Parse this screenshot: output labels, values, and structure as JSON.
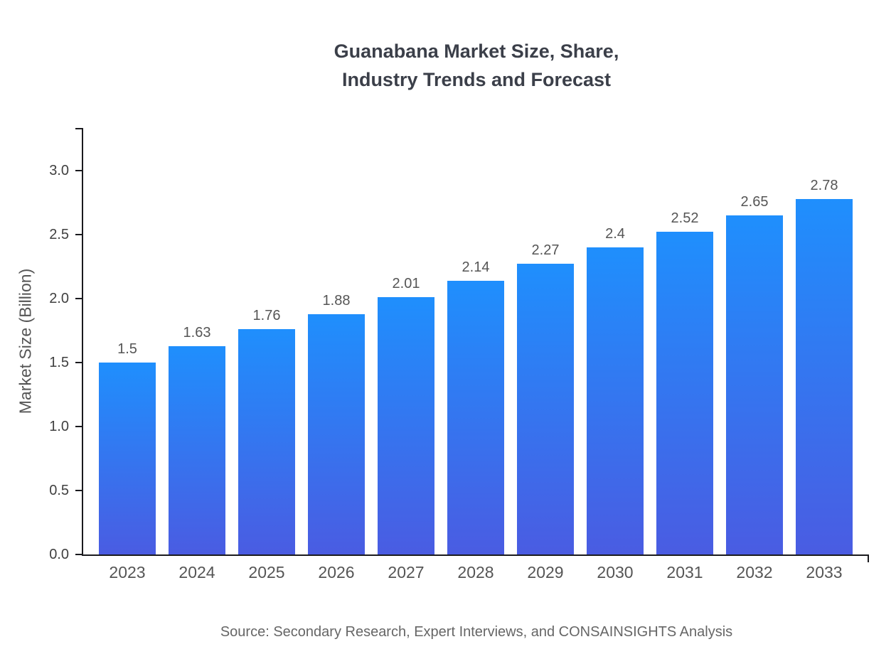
{
  "title": {
    "line1": "Guanabana Market Size, Share,",
    "line2": "Industry Trends and Forecast"
  },
  "chart_data": {
    "type": "bar",
    "title": "Guanabana Market Size, Share, Industry Trends and Forecast",
    "categories": [
      "2023",
      "2024",
      "2025",
      "2026",
      "2027",
      "2028",
      "2029",
      "2030",
      "2031",
      "2032",
      "2033"
    ],
    "values": [
      1.5,
      1.63,
      1.76,
      1.88,
      2.01,
      2.14,
      2.27,
      2.4,
      2.52,
      2.65,
      2.78
    ],
    "xlabel": "",
    "ylabel": "Market Size (Billion)",
    "ylim": [
      0,
      3.333
    ],
    "yticks": [
      0.0,
      0.5,
      1.0,
      1.5,
      2.0,
      2.5,
      3.0
    ],
    "grid": false,
    "legend": "none",
    "bar_color_top": "#1f8ffd",
    "bar_color_bottom": "#4a5ce2",
    "axis_color": "#1a1a1e"
  },
  "source": "Source: Secondary Research, Expert Interviews, and CONSAINSIGHTS Analysis"
}
